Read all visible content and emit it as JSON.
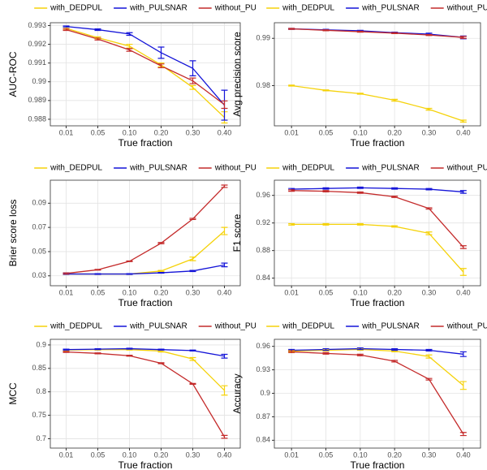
{
  "chart_data": [
    {
      "type": "line",
      "y_label": "AUC-ROC",
      "x_label": "True fraction",
      "categories": [
        "0.01",
        "0.05",
        "0.10",
        "0.20",
        "0.30",
        "0.40"
      ],
      "series": [
        {
          "name": "with_DEDPUL",
          "color": "#f5d20a",
          "values": [
            0.99285,
            0.99235,
            0.9919,
            0.9909,
            0.9897,
            0.9881
          ],
          "errors": [
            5e-05,
            5e-05,
            0.0001,
            0.0001,
            0.0001,
            0.0003
          ]
        },
        {
          "name": "with_PULSNAR",
          "color": "#1414d8",
          "values": [
            0.99295,
            0.99278,
            0.99255,
            0.99155,
            0.99072,
            0.98875
          ],
          "errors": [
            3e-05,
            4e-05,
            7e-05,
            0.0003,
            0.0004,
            0.0008
          ]
        },
        {
          "name": "without_PU",
          "color": "#c42b2b",
          "values": [
            0.99278,
            0.99228,
            0.9917,
            0.99085,
            0.99005,
            0.98878
          ],
          "errors": [
            4e-05,
            5e-05,
            7e-05,
            0.0001,
            0.00015,
            0.0002
          ]
        }
      ],
      "ylim": [
        0.98765,
        0.99315
      ],
      "yticks": [
        0.988,
        0.989,
        0.99,
        0.991,
        0.992,
        0.993
      ],
      "grid": true
    },
    {
      "type": "line",
      "y_label": "Avg precision score",
      "x_label": "True fraction",
      "categories": [
        "0.01",
        "0.05",
        "0.10",
        "0.20",
        "0.30",
        "0.40"
      ],
      "series": [
        {
          "name": "with_DEDPUL",
          "color": "#f5d20a",
          "values": [
            0.98,
            0.979,
            0.9783,
            0.9769,
            0.975,
            0.9725
          ],
          "errors": [
            0.0001,
            0.0001,
            0.0001,
            0.0002,
            0.0002,
            0.0002
          ]
        },
        {
          "name": "with_PULSNAR",
          "color": "#1414d8",
          "values": [
            0.992,
            0.9918,
            0.9916,
            0.9912,
            0.9909,
            0.9902
          ],
          "errors": [
            0.0001,
            0.0001,
            0.0001,
            0.0001,
            0.0002,
            0.0003
          ]
        },
        {
          "name": "without_PU",
          "color": "#c42b2b",
          "values": [
            0.992,
            0.9917,
            0.9914,
            0.9911,
            0.9907,
            0.9902
          ],
          "errors": [
            0.0001,
            0.0001,
            0.0001,
            0.0001,
            0.0001,
            0.0002
          ]
        }
      ],
      "ylim": [
        0.9715,
        0.9933
      ],
      "yticks": [
        0.98,
        0.99
      ],
      "grid": true
    },
    {
      "type": "line",
      "y_label": "Brier score loss",
      "x_label": "True fraction",
      "categories": [
        "0.01",
        "0.05",
        "0.10",
        "0.20",
        "0.30",
        "0.40"
      ],
      "series": [
        {
          "name": "with_DEDPUL",
          "color": "#f5d20a",
          "values": [
            0.0315,
            0.0315,
            0.0315,
            0.034,
            0.044,
            0.067
          ],
          "errors": [
            0.0003,
            0.0003,
            0.0003,
            0.0005,
            0.0015,
            0.003
          ]
        },
        {
          "name": "with_PULSNAR",
          "color": "#1414d8",
          "values": [
            0.0315,
            0.0315,
            0.0315,
            0.0325,
            0.034,
            0.039
          ],
          "errors": [
            0.0003,
            0.0003,
            0.0003,
            0.0003,
            0.0005,
            0.0015
          ]
        },
        {
          "name": "without_PU",
          "color": "#c42b2b",
          "values": [
            0.032,
            0.035,
            0.042,
            0.057,
            0.077,
            0.104
          ],
          "errors": [
            0.0005,
            0.0003,
            0.0003,
            0.0005,
            0.0005,
            0.001
          ]
        }
      ],
      "ylim": [
        0.0218,
        0.109
      ],
      "yticks": [
        0.03,
        0.05,
        0.07,
        0.09
      ],
      "grid": true
    },
    {
      "type": "line",
      "y_label": "F1 score",
      "x_label": "True fraction",
      "categories": [
        "0.01",
        "0.05",
        "0.10",
        "0.20",
        "0.30",
        "0.40"
      ],
      "series": [
        {
          "name": "with_DEDPUL",
          "color": "#f5d20a",
          "values": [
            0.918,
            0.918,
            0.918,
            0.915,
            0.905,
            0.849
          ],
          "errors": [
            0.001,
            0.001,
            0.001,
            0.001,
            0.002,
            0.005
          ]
        },
        {
          "name": "with_PULSNAR",
          "color": "#1414d8",
          "values": [
            0.969,
            0.97,
            0.971,
            0.97,
            0.969,
            0.965
          ],
          "errors": [
            0.001,
            0.001,
            0.001,
            0.001,
            0.001,
            0.002
          ]
        },
        {
          "name": "without_PU",
          "color": "#c42b2b",
          "values": [
            0.967,
            0.966,
            0.964,
            0.958,
            0.941,
            0.885
          ],
          "errors": [
            0.001,
            0.001,
            0.001,
            0.001,
            0.001,
            0.002
          ]
        }
      ],
      "ylim": [
        0.829,
        0.982
      ],
      "yticks": [
        0.84,
        0.88,
        0.92,
        0.96
      ],
      "grid": true
    },
    {
      "type": "line",
      "y_label": "MCC",
      "x_label": "True fraction",
      "categories": [
        "0.01",
        "0.05",
        "0.10",
        "0.20",
        "0.30",
        "0.40"
      ],
      "series": [
        {
          "name": "with_DEDPUL",
          "color": "#f5d20a",
          "values": [
            0.889,
            0.89,
            0.89,
            0.887,
            0.87,
            0.803
          ],
          "errors": [
            0.002,
            0.001,
            0.001,
            0.002,
            0.003,
            0.01
          ]
        },
        {
          "name": "with_PULSNAR",
          "color": "#1414d8",
          "values": [
            0.89,
            0.891,
            0.892,
            0.89,
            0.888,
            0.876
          ],
          "errors": [
            0.001,
            0.001,
            0.001,
            0.001,
            0.001,
            0.004
          ]
        },
        {
          "name": "without_PU",
          "color": "#c42b2b",
          "values": [
            0.885,
            0.882,
            0.877,
            0.861,
            0.817,
            0.704
          ],
          "errors": [
            0.001,
            0.001,
            0.001,
            0.001,
            0.001,
            0.003
          ]
        }
      ],
      "ylim": [
        0.68,
        0.912
      ],
      "yticks": [
        0.7,
        0.75,
        0.8,
        0.85,
        0.9
      ],
      "grid": true
    },
    {
      "type": "line",
      "y_label": "Accuracy",
      "x_label": "True fraction",
      "categories": [
        "0.01",
        "0.05",
        "0.10",
        "0.20",
        "0.30",
        "0.40"
      ],
      "series": [
        {
          "name": "with_DEDPUL",
          "color": "#f5d20a",
          "values": [
            0.954,
            0.955,
            0.956,
            0.954,
            0.947,
            0.91
          ],
          "errors": [
            0.001,
            0.001,
            0.001,
            0.001,
            0.002,
            0.005
          ]
        },
        {
          "name": "with_PULSNAR",
          "color": "#1414d8",
          "values": [
            0.955,
            0.956,
            0.957,
            0.956,
            0.955,
            0.95
          ],
          "errors": [
            0.001,
            0.001,
            0.001,
            0.001,
            0.001,
            0.003
          ]
        },
        {
          "name": "without_PU",
          "color": "#c42b2b",
          "values": [
            0.953,
            0.951,
            0.949,
            0.941,
            0.918,
            0.848
          ],
          "errors": [
            0.001,
            0.001,
            0.001,
            0.001,
            0.001,
            0.002
          ]
        }
      ],
      "ylim": [
        0.83,
        0.969
      ],
      "yticks": [
        0.84,
        0.87,
        0.9,
        0.93,
        0.96
      ],
      "grid": true
    }
  ]
}
